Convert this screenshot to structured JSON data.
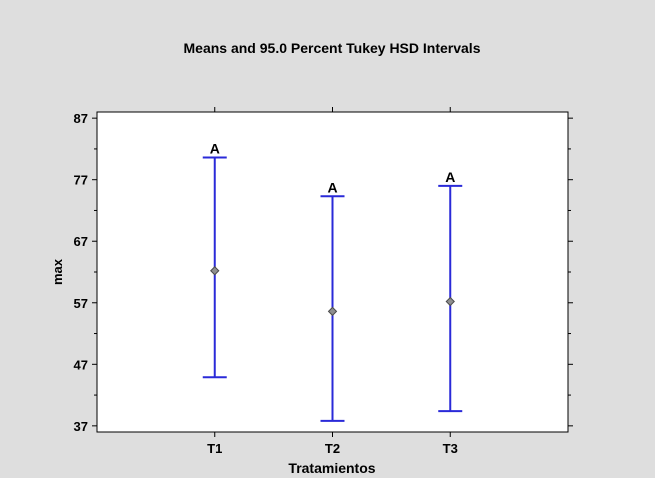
{
  "chart_data": {
    "type": "errorbar",
    "title": "Means and 95.0 Percent Tukey HSD Intervals",
    "xlabel": "Tratamientos",
    "ylabel": "max",
    "categories": [
      "T1",
      "T2",
      "T3"
    ],
    "means": [
      62.2,
      55.6,
      57.2
    ],
    "lower": [
      44.9,
      37.8,
      39.4
    ],
    "upper": [
      80.6,
      74.3,
      76.0
    ],
    "group_labels": [
      "A",
      "A",
      "A"
    ],
    "ylim": [
      36,
      88
    ],
    "yticks": [
      37,
      47,
      57,
      67,
      77,
      87
    ],
    "grid": false,
    "legend": "none",
    "colors": {
      "interval": "#2a2ad8",
      "marker_fill": "#8f8f8f",
      "marker_stroke": "#4b4b4b",
      "page_background": "#dedede",
      "plot_background": "#ffffff"
    }
  }
}
